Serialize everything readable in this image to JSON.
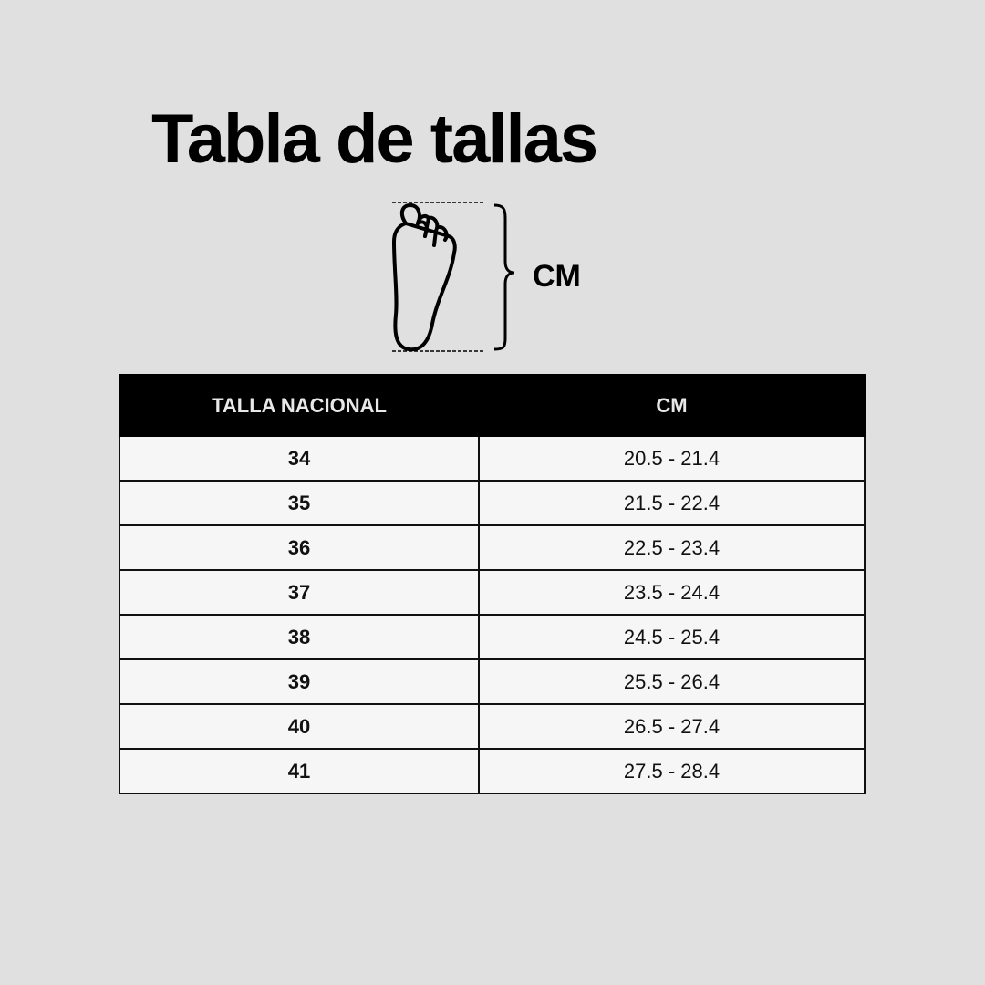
{
  "title": "Tabla de tallas",
  "diagram": {
    "measure_label": "CM",
    "icon": "foot-outline-icon"
  },
  "table": {
    "headers": [
      "TALLA NACIONAL",
      "CM"
    ],
    "rows": [
      {
        "size": "34",
        "cm": "20.5 - 21.4"
      },
      {
        "size": "35",
        "cm": "21.5 - 22.4"
      },
      {
        "size": "36",
        "cm": "22.5 - 23.4"
      },
      {
        "size": "37",
        "cm": "23.5 - 24.4"
      },
      {
        "size": "38",
        "cm": "24.5 - 25.4"
      },
      {
        "size": "39",
        "cm": "25.5 - 26.4"
      },
      {
        "size": "40",
        "cm": "26.5 - 27.4"
      },
      {
        "size": "41",
        "cm": "27.5 - 28.4"
      }
    ]
  },
  "colors": {
    "background": "#e0e0e0",
    "header": "#000000",
    "cell": "#f7f6f7"
  }
}
